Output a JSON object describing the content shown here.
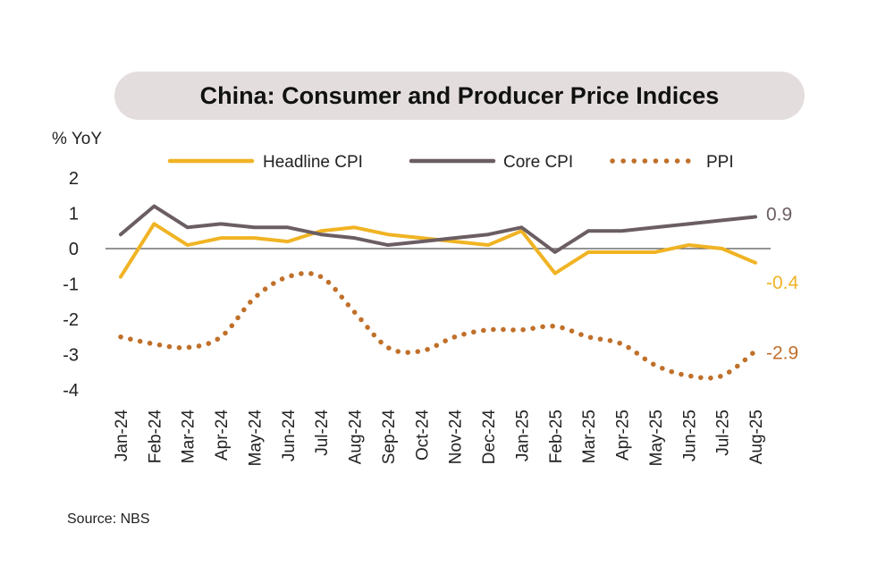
{
  "chart_data": {
    "type": "line",
    "title": "China: Consumer and Producer Price Indices",
    "ylabel": "% YoY",
    "ylim": [
      -4,
      2
    ],
    "yticks": [
      2,
      1,
      0,
      -1,
      -2,
      -3,
      -4
    ],
    "categories": [
      "Jan-24",
      "Feb-24",
      "Mar-24",
      "Apr-24",
      "May-24",
      "Jun-24",
      "Jul-24",
      "Aug-24",
      "Sep-24",
      "Oct-24",
      "Nov-24",
      "Dec-24",
      "Jan-25",
      "Feb-25",
      "Mar-25",
      "Apr-25",
      "May-25",
      "Jun-25",
      "Jul-25",
      "Aug-25"
    ],
    "series": [
      {
        "name": "Headline CPI",
        "style": "solid",
        "color": "#f0b323",
        "values": [
          -0.8,
          0.7,
          0.1,
          0.3,
          0.3,
          0.2,
          0.5,
          0.6,
          0.4,
          0.3,
          0.2,
          0.1,
          0.5,
          -0.7,
          -0.1,
          -0.1,
          -0.1,
          0.1,
          0.0,
          -0.4
        ],
        "end_label": "-0.4"
      },
      {
        "name": "Core CPI",
        "style": "solid",
        "color": "#6b5e62",
        "values": [
          0.4,
          1.2,
          0.6,
          0.7,
          0.6,
          0.6,
          0.4,
          0.3,
          0.1,
          0.2,
          0.3,
          0.4,
          0.6,
          -0.1,
          0.5,
          0.5,
          0.6,
          0.7,
          0.8,
          0.9
        ],
        "end_label": "0.9"
      },
      {
        "name": "PPI",
        "style": "dotted",
        "color": "#c0702a",
        "values": [
          -2.5,
          -2.7,
          -2.8,
          -2.5,
          -1.4,
          -0.8,
          -0.8,
          -1.8,
          -2.8,
          -2.9,
          -2.5,
          -2.3,
          -2.3,
          -2.2,
          -2.5,
          -2.7,
          -3.3,
          -3.6,
          -3.6,
          -2.9
        ],
        "end_label": "-2.9"
      }
    ],
    "zero_line": true,
    "grid": false,
    "legend_position": "top"
  },
  "source": "Source: NBS"
}
